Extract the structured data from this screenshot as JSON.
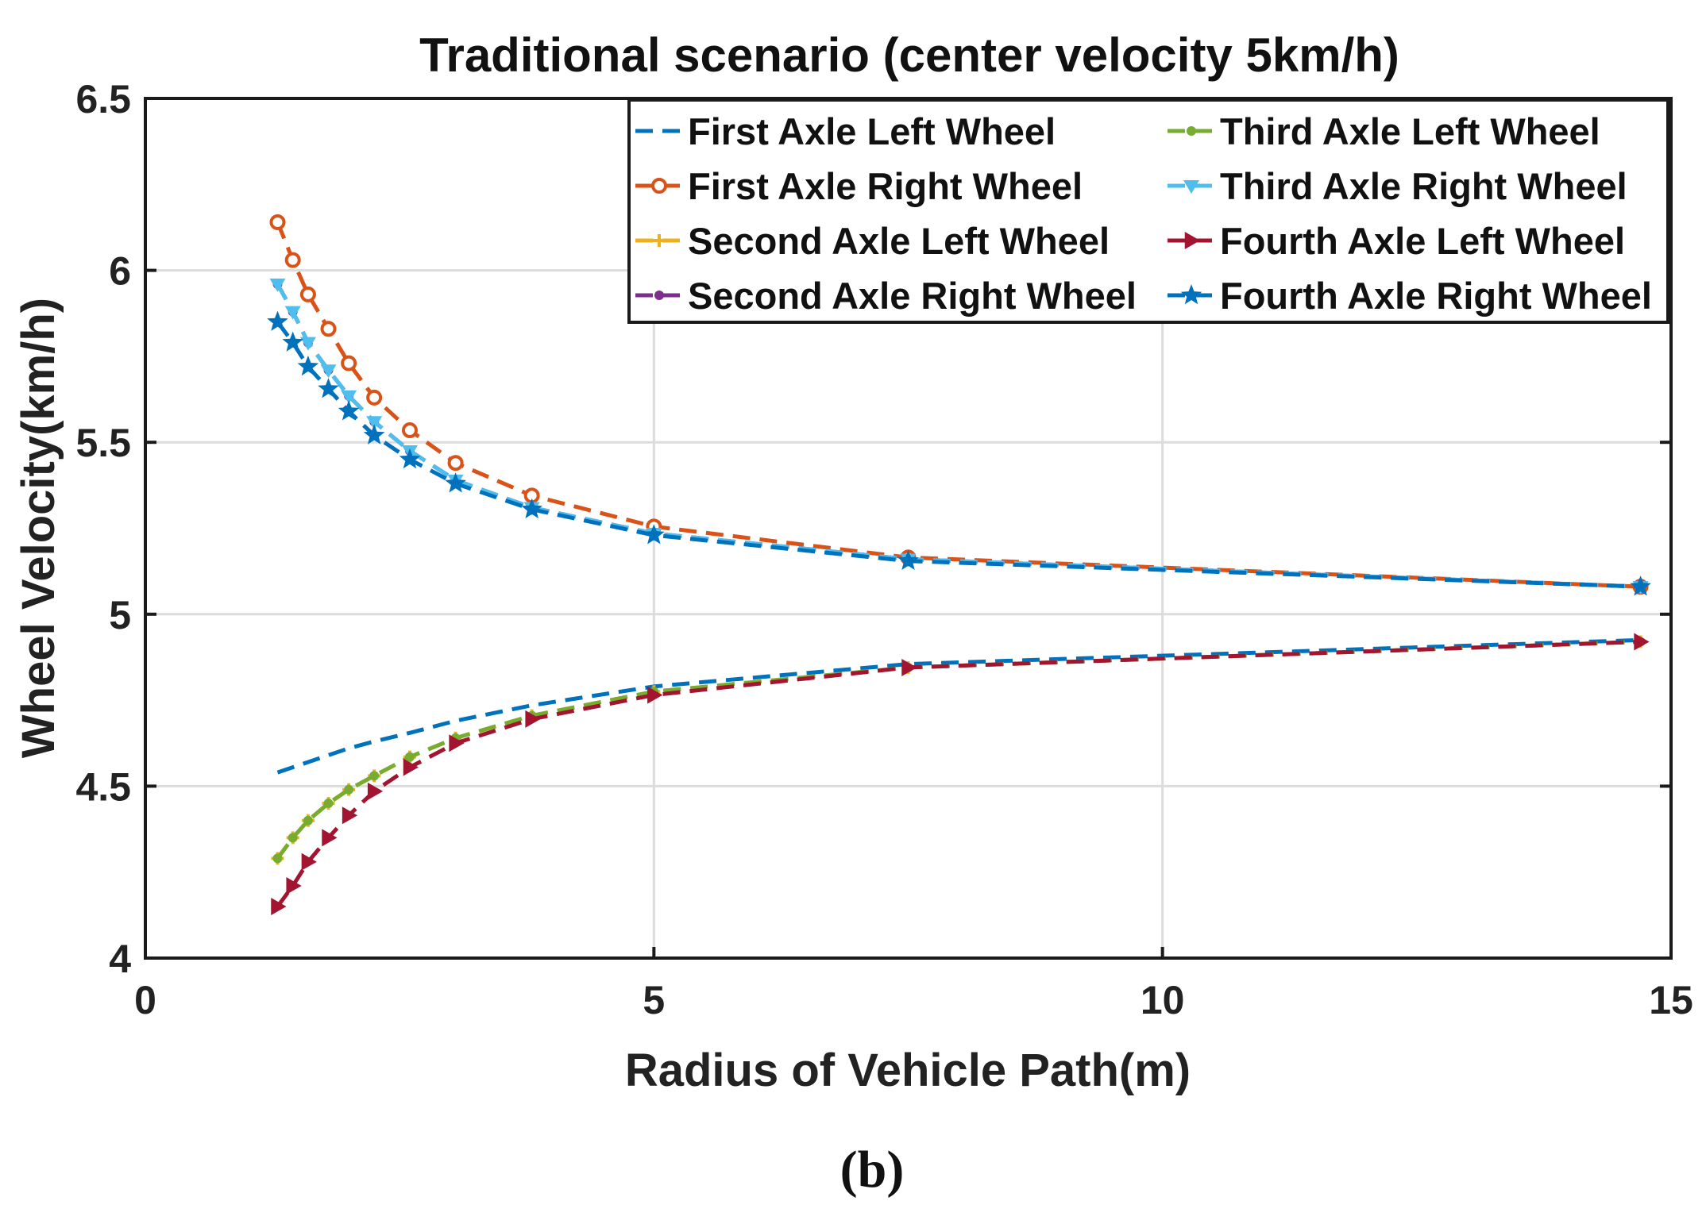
{
  "chart_data": {
    "type": "line",
    "title": "Traditional scenario (center velocity 5km/h)",
    "xlabel": "Radius of Vehicle Path(m)",
    "ylabel": "Wheel Velocity(km/h)",
    "xlim": [
      0,
      15
    ],
    "ylim": [
      4,
      6.5
    ],
    "xticks": [
      0,
      5,
      10,
      15
    ],
    "xtick_labels": [
      "0",
      "5",
      "10",
      "15"
    ],
    "yticks": [
      4,
      4.5,
      5,
      5.5,
      6,
      6.5
    ],
    "ytick_labels": [
      "4",
      "4.5",
      "5",
      "5.5",
      "6",
      "6.5"
    ],
    "grid": true,
    "legend_position": "top-right",
    "caption": "(b)",
    "x": [
      1.3,
      1.45,
      1.6,
      1.8,
      2.0,
      2.25,
      2.6,
      3.05,
      3.8,
      5.0,
      7.5,
      14.7
    ],
    "series": [
      {
        "name": "First Axle Left Wheel",
        "color": "#0072BD",
        "marker": "none",
        "values": [
          4.54,
          4.555,
          4.57,
          4.59,
          4.61,
          4.63,
          4.655,
          4.69,
          4.735,
          4.79,
          4.855,
          4.925
        ]
      },
      {
        "name": "First Axle Right Wheel",
        "color": "#D95319",
        "marker": "circle",
        "values": [
          6.14,
          6.03,
          5.93,
          5.83,
          5.73,
          5.63,
          5.535,
          5.44,
          5.345,
          5.255,
          5.165,
          5.08
        ]
      },
      {
        "name": "Second Axle Left Wheel",
        "color": "#EDB120",
        "marker": "plus",
        "values": [
          4.29,
          4.35,
          4.4,
          4.45,
          4.49,
          4.53,
          4.585,
          4.64,
          4.705,
          4.775,
          4.845,
          4.92
        ]
      },
      {
        "name": "Second Axle Right Wheel",
        "color": "#7E2F8E",
        "marker": "dot",
        "values": [
          5.96,
          5.88,
          5.79,
          5.71,
          5.635,
          5.56,
          5.475,
          5.39,
          5.31,
          5.235,
          5.16,
          5.08
        ]
      },
      {
        "name": "Third Axle Left Wheel",
        "color": "#77AC30",
        "marker": "dot",
        "values": [
          4.29,
          4.35,
          4.4,
          4.45,
          4.49,
          4.53,
          4.585,
          4.64,
          4.705,
          4.775,
          4.845,
          4.92
        ]
      },
      {
        "name": "Third Axle Right Wheel",
        "color": "#4DBEEE",
        "marker": "triangle-down",
        "values": [
          5.96,
          5.88,
          5.79,
          5.71,
          5.635,
          5.56,
          5.475,
          5.39,
          5.31,
          5.235,
          5.16,
          5.08
        ]
      },
      {
        "name": "Fourth Axle Left Wheel",
        "color": "#A2142F",
        "marker": "triangle-right",
        "values": [
          4.15,
          4.21,
          4.28,
          4.35,
          4.415,
          4.485,
          4.555,
          4.625,
          4.695,
          4.765,
          4.845,
          4.92
        ]
      },
      {
        "name": "Fourth Axle Right Wheel",
        "color": "#0072BD",
        "marker": "star",
        "values": [
          5.85,
          5.79,
          5.72,
          5.655,
          5.59,
          5.52,
          5.45,
          5.38,
          5.305,
          5.23,
          5.155,
          5.08
        ]
      }
    ]
  }
}
